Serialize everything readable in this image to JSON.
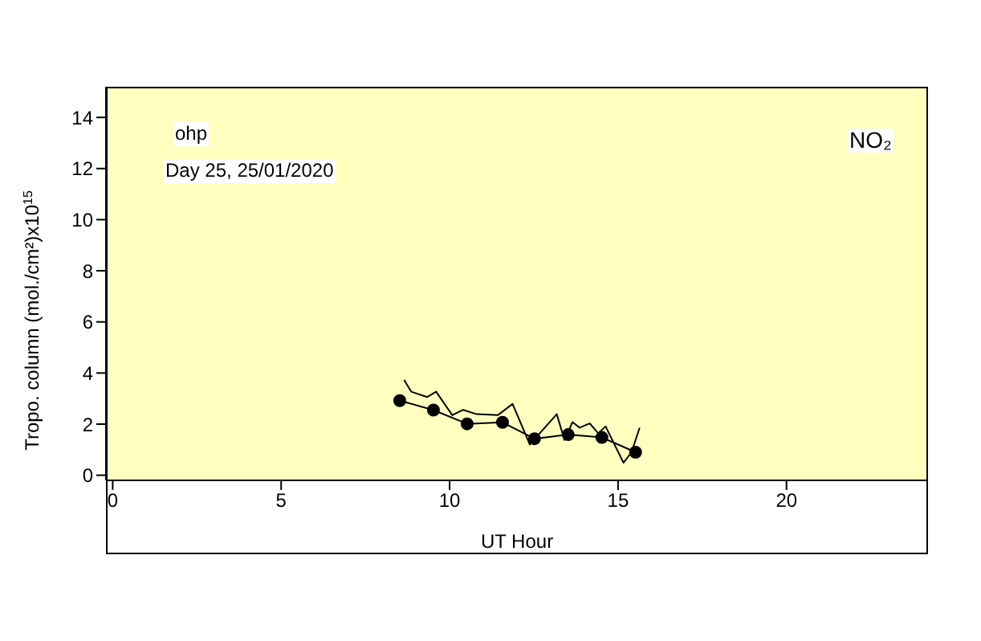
{
  "chart_data": {
    "type": "line",
    "xlabel": "UT Hour",
    "ylabel": "Tropo. column (mol./cm²)x10$^{15}$",
    "annotations": [
      "ohp",
      "Day 25, 25/01/2020",
      "NO₂"
    ],
    "xlim": [
      -0.2,
      24.2
    ],
    "xticks": [
      0,
      5,
      10,
      15,
      20
    ],
    "ylim": [
      -0.2,
      15.2
    ],
    "yticks": [
      0,
      2,
      4,
      6,
      8,
      10,
      12,
      14
    ],
    "grid": false,
    "series": [
      {
        "color": "#000000",
        "marker": "circle",
        "x": [
          8.52,
          9.52,
          10.52,
          11.57,
          12.52,
          13.52,
          14.52,
          15.52
        ],
        "values": [
          2.92,
          2.55,
          2.01,
          2.07,
          1.43,
          1.59,
          1.48,
          0.9
        ]
      },
      {
        "color": "#000000",
        "marker": "none",
        "x": [
          8.65,
          8.86,
          9.33,
          9.6,
          10.08,
          10.4,
          10.8,
          11.43,
          11.87,
          12.38,
          13.18,
          13.41,
          13.65,
          13.86,
          14.16,
          14.41,
          14.63,
          15.16,
          15.4,
          15.64
        ],
        "values": [
          3.73,
          3.27,
          3.06,
          3.27,
          2.35,
          2.56,
          2.39,
          2.35,
          2.79,
          1.2,
          2.39,
          1.38,
          2.08,
          1.86,
          2.03,
          1.64,
          1.91,
          0.49,
          0.9,
          1.86
        ]
      }
    ]
  }
}
